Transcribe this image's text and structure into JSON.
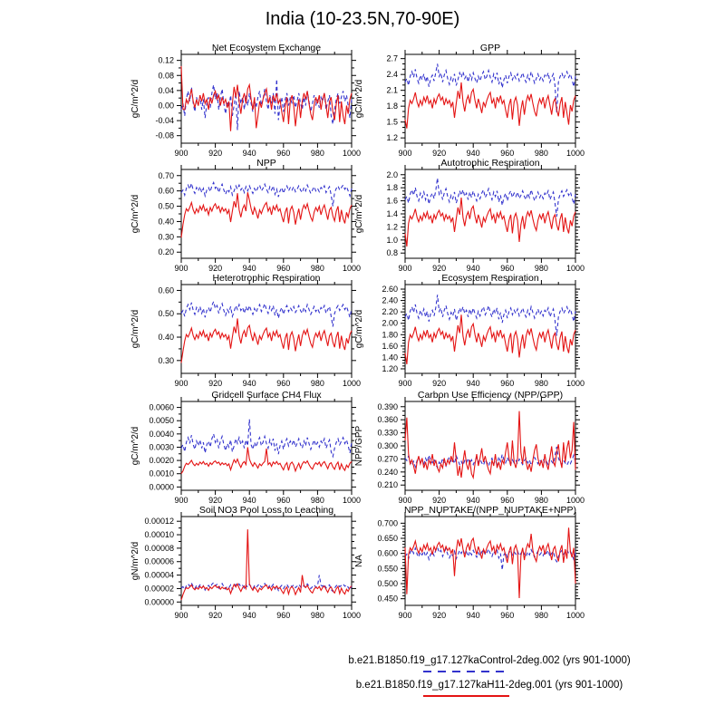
{
  "header": {
    "title": "India (10-23.5N,70-90E)"
  },
  "legend": {
    "entries": [
      {
        "label": "b.e21.B1850.f19_g17.127kaControl-2deg.002 (yrs 901-1000)",
        "color": "#3232cd",
        "style": "dashed"
      },
      {
        "label": "b.e21.B1850.f19_g17.127kaH11-2deg.001 (yrs 901-1000)",
        "color": "#e41414",
        "style": "solid"
      }
    ]
  },
  "chart_data": {
    "type": "line",
    "x_start": 900,
    "x_end": 1000,
    "x_ticks": [
      900,
      920,
      940,
      960,
      980,
      1000
    ],
    "x_minor_step": 10,
    "series_styles": [
      {
        "name": "127kaControl-2deg.002",
        "color": "#3232cd",
        "dash": "4 3"
      },
      {
        "name": "127kaH11-2deg.001",
        "color": "#e41414",
        "dash": ""
      }
    ],
    "waveforms": {
      "blue": [
        -0.2,
        0.1,
        -0.5,
        0.3,
        0.7,
        0.2,
        0.9,
        0.1,
        -0.3,
        0.4,
        0.0,
        0.5,
        -0.2,
        0.3,
        -0.6,
        0.1,
        0.4,
        -0.1,
        0.6,
        1.0,
        0.3,
        0.6,
        -0.2,
        0.4,
        0.8,
        0.1,
        -0.4,
        0.2,
        -0.1,
        0.5,
        -0.5,
        0.0,
        0.6,
        0.2,
        0.7,
        0.1,
        0.4,
        -0.2,
        0.5,
        0.0,
        0.6,
        0.1,
        -0.3,
        0.3,
        -0.1,
        0.4,
        0.7,
        0.0,
        0.3,
        0.8,
        0.2,
        -0.2,
        0.5,
        0.1,
        0.6,
        -0.4,
        0.2,
        -0.7,
        0.0,
        0.4,
        -0.3,
        0.3,
        0.6,
        0.0,
        0.4,
        0.1,
        0.5,
        -0.1,
        0.2,
        0.6,
        0.1,
        -0.2,
        0.4,
        0.0,
        0.7,
        0.2,
        -0.3,
        0.1,
        0.5,
        0.0,
        0.3,
        -0.1,
        0.4,
        0.2,
        0.6,
        -0.2,
        0.2,
        0.5,
        -0.5,
        -0.9,
        -0.2,
        0.3,
        0.6,
        0.1,
        0.4,
        0.7,
        0.2,
        0.5,
        0.0,
        -0.6,
        0.3
      ],
      "red": [
        -0.9,
        -1.0,
        -0.2,
        0.3,
        0.1,
        0.4,
        0.8,
        0.2,
        -0.1,
        0.3,
        0.0,
        0.5,
        0.2,
        0.6,
        0.1,
        0.3,
        -0.2,
        0.4,
        0.1,
        0.5,
        0.7,
        0.3,
        0.5,
        0.0,
        0.4,
        0.1,
        0.3,
        -0.1,
        0.2,
        -0.8,
        0.1,
        0.9,
        0.4,
        1.0,
        0.2,
        -0.4,
        0.3,
        0.6,
        0.1,
        0.8,
        1.0,
        0.3,
        -0.2,
        0.4,
        0.0,
        -0.5,
        0.2,
        -0.1,
        0.3,
        0.6,
        0.8,
        0.1,
        0.4,
        -0.2,
        0.5,
        0.2,
        0.6,
        0.1,
        0.3,
        -0.3,
        -0.8,
        0.0,
        0.4,
        -0.9,
        0.2,
        0.5,
        0.0,
        -1.0,
        -0.3,
        0.3,
        -0.6,
        0.2,
        0.6,
        0.3,
        0.7,
        0.1,
        -0.4,
        -0.7,
        0.0,
        0.4,
        0.1,
        0.5,
        -0.2,
        0.3,
        0.6,
        0.0,
        -0.6,
        0.2,
        0.4,
        -0.3,
        -0.7,
        0.1,
        0.5,
        -0.8,
        0.2,
        -0.5,
        -0.9,
        0.0,
        -0.4,
        0.3,
        0.6
      ]
    },
    "panels": [
      {
        "title": "Net Ecosystem Exchange",
        "ylabel": "gC/m^2/d",
        "ylim": [
          -0.1,
          0.136
        ],
        "yticks": [
          -0.08,
          -0.04,
          0.0,
          0.04,
          0.08,
          0.12
        ],
        "ydec": 2,
        "yminor": 1,
        "series": [
          {
            "wave": "blue",
            "center": 0.0,
            "amp": 0.055,
            "overrides": {
              "33": -0.065,
              "56": 0.07
            }
          },
          {
            "wave": "red",
            "center": 0.0,
            "amp": 0.055,
            "overrides": {
              "0": 0.105,
              "1": -0.01,
              "29": -0.068,
              "44": -0.06
            }
          }
        ]
      },
      {
        "title": "GPP",
        "ylabel": "gC/m^2/d",
        "ylim": [
          1.1,
          2.78
        ],
        "yticks": [
          1.2,
          1.5,
          1.8,
          2.1,
          2.4,
          2.7
        ],
        "ydec": 1,
        "yminor": 2,
        "series": [
          {
            "wave": "blue",
            "center": 2.3,
            "amp": 0.22,
            "overrides": {
              "19": 2.6,
              "89": 1.68
            }
          },
          {
            "wave": "red",
            "center": 1.82,
            "amp": 0.3,
            "overrides": {
              "1": 1.38,
              "33": 2.25,
              "67": 1.43,
              "96": 1.45
            }
          }
        ]
      },
      {
        "title": "NPP",
        "ylabel": "gC/m^2/d",
        "ylim": [
          0.16,
          0.74
        ],
        "yticks": [
          0.2,
          0.3,
          0.4,
          0.5,
          0.6,
          0.7
        ],
        "ydec": 2,
        "yminor": 1,
        "series": [
          {
            "wave": "blue",
            "center": 0.6,
            "amp": 0.055,
            "overrides": {
              "89": 0.5
            }
          },
          {
            "wave": "red",
            "center": 0.46,
            "amp": 0.08,
            "overrides": {
              "0": 0.295,
              "33": 0.585,
              "39": 0.59
            }
          }
        ]
      },
      {
        "title": "Autotrophic Respiration",
        "ylabel": "gC/m^2/d",
        "ylim": [
          0.72,
          2.08
        ],
        "yticks": [
          0.8,
          1.0,
          1.2,
          1.4,
          1.6,
          1.8,
          2.0
        ],
        "ydec": 1,
        "yminor": 3,
        "series": [
          {
            "wave": "blue",
            "center": 1.65,
            "amp": 0.17,
            "overrides": {
              "19": 1.95,
              "89": 1.36
            }
          },
          {
            "wave": "red",
            "center": 1.3,
            "amp": 0.22,
            "overrides": {
              "1": 0.9,
              "33": 1.65,
              "67": 0.97
            }
          }
        ]
      },
      {
        "title": "Heterotrophic Respiration",
        "ylabel": "gC/m^2/d",
        "ylim": [
          0.245,
          0.625
        ],
        "yticks": [
          0.3,
          0.4,
          0.5,
          0.6
        ],
        "ydec": 2,
        "yminor": 1,
        "series": [
          {
            "wave": "blue",
            "center": 0.51,
            "amp": 0.042,
            "overrides": {
              "89": 0.445
            }
          },
          {
            "wave": "red",
            "center": 0.395,
            "amp": 0.055,
            "overrides": {
              "0": 0.29,
              "33": 0.48
            }
          }
        ]
      },
      {
        "title": "Ecosystem Respiration",
        "ylabel": "gC/m^2/d",
        "ylim": [
          1.12,
          2.68
        ],
        "yticks": [
          1.2,
          1.4,
          1.6,
          1.8,
          2.0,
          2.2,
          2.4,
          2.6
        ],
        "ydec": 2,
        "yminor": 3,
        "series": [
          {
            "wave": "blue",
            "center": 2.15,
            "amp": 0.2,
            "overrides": {
              "19": 2.5,
              "89": 1.78
            }
          },
          {
            "wave": "red",
            "center": 1.72,
            "amp": 0.27,
            "overrides": {
              "1": 1.28,
              "33": 2.15,
              "67": 1.4
            }
          }
        ]
      },
      {
        "title": "Gridcell Surface CH4 Flux",
        "ylabel": "gC/m^2/d",
        "ylim": [
          -0.00025,
          0.00645
        ],
        "yticks": [
          0.0,
          0.001,
          0.002,
          0.003,
          0.004,
          0.005,
          0.006
        ],
        "ydec": 4,
        "yminor": 1,
        "series": [
          {
            "wave": "blue",
            "center": 0.0031,
            "amp": 0.0009,
            "overrides": {
              "40": 0.0051
            }
          },
          {
            "wave": "red",
            "center": 0.00165,
            "amp": 0.00045,
            "overrides": {
              "0": 0.001,
              "39": 0.003,
              "50": 0.0029
            }
          }
        ]
      },
      {
        "title": "Carbon Use Efficiency (NPP/GPP)",
        "ylabel": "NPP/GPP",
        "ylim": [
          0.198,
          0.402
        ],
        "yticks": [
          0.21,
          0.24,
          0.27,
          0.3,
          0.33,
          0.36,
          0.39
        ],
        "ydec": 3,
        "yminor": 2,
        "series": [
          {
            "wave": "blue",
            "center": 0.268,
            "amp": -0.018,
            "overrides": {
              "89": 0.298
            }
          },
          {
            "wave": "red",
            "center": 0.272,
            "amp": -0.045,
            "overrides": {
              "1": 0.365,
              "67": 0.38,
              "99": 0.355
            }
          }
        ]
      },
      {
        "title": "Soil NO3 Pool Loss to Leaching",
        "ylabel": "gN/m^2/d",
        "ylim": [
          -5e-06,
          0.000127
        ],
        "yticks": [
          0.0,
          2e-05,
          4e-05,
          6e-05,
          8e-05,
          0.0001,
          0.00012
        ],
        "ydec": 5,
        "yminor": 1,
        "series": [
          {
            "wave": "blue",
            "center": 2.2e-05,
            "amp": 7e-06,
            "overrides": {
              "81": 4e-05
            }
          },
          {
            "wave": "red",
            "center": 1.9e-05,
            "amp": 8e-06,
            "overrides": {
              "0": 3e-06,
              "39": 0.000108,
              "71": 4e-05
            }
          }
        ]
      },
      {
        "title": "NPP_NUPTAKE/(NPP_NUPTAKE+NPP)",
        "ylabel": "NA",
        "ylim": [
          0.428,
          0.722
        ],
        "yticks": [
          0.45,
          0.5,
          0.55,
          0.6,
          0.65,
          0.7
        ],
        "ydec": 3,
        "yminor": 4,
        "series": [
          {
            "wave": "blue",
            "center": 0.595,
            "amp": 0.025,
            "overrides": {
              "57": 0.545
            }
          },
          {
            "wave": "red",
            "center": 0.605,
            "amp": 0.045,
            "overrides": {
              "0": 0.62,
              "1": 0.465,
              "29": 0.525,
              "67": 0.452,
              "74": 0.665,
              "96": 0.685,
              "100": 0.5
            }
          }
        ]
      }
    ]
  }
}
